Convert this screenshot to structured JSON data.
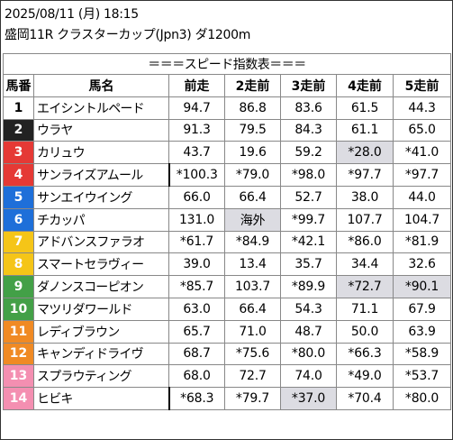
{
  "header": {
    "date_time": "2025/08/11 (月) 18:15",
    "race": "盛岡11R クラスターカップ(Jpn3) ダ1200m"
  },
  "table": {
    "title": "＝＝＝スピード指数表＝＝＝",
    "columns": [
      "馬番",
      "馬名",
      "前走",
      "2走前",
      "3走前",
      "4走前",
      "5走前"
    ],
    "rows": [
      {
        "num": "1",
        "name": "エイシントルペード",
        "bg": "#ffffff",
        "fg": "#000000",
        "vals": [
          "94.7",
          "86.8",
          "83.6",
          "61.5",
          "44.3"
        ]
      },
      {
        "num": "2",
        "name": "ウラヤ",
        "bg": "#222222",
        "fg": "#ffffff",
        "vals": [
          "91.3",
          "79.5",
          "84.3",
          "61.1",
          "65.0"
        ]
      },
      {
        "num": "3",
        "name": "カリュウ",
        "bg": "#e53935",
        "fg": "#ffffff",
        "vals": [
          "43.7",
          "19.6",
          "59.2",
          "*28.0",
          "*41.0"
        ]
      },
      {
        "num": "4",
        "name": "サンライズアムール",
        "bg": "#e53935",
        "fg": "#ffffff",
        "vals": [
          "*100.3",
          "*79.0",
          "*98.0",
          "*97.7",
          "*97.7"
        ]
      },
      {
        "num": "5",
        "name": "サンエイウイング",
        "bg": "#1e6fd9",
        "fg": "#ffffff",
        "vals": [
          "66.0",
          "66.4",
          "52.7",
          "38.0",
          "44.0"
        ]
      },
      {
        "num": "6",
        "name": "チカッパ",
        "bg": "#1e6fd9",
        "fg": "#ffffff",
        "vals": [
          "131.0",
          "海外",
          "*99.7",
          "107.7",
          "104.7"
        ]
      },
      {
        "num": "7",
        "name": "アドバンスファラオ",
        "bg": "#f5c518",
        "fg": "#ffffff",
        "vals": [
          "*61.7",
          "*84.9",
          "*42.1",
          "*86.0",
          "*81.9"
        ]
      },
      {
        "num": "8",
        "name": "スマートセラヴィー",
        "bg": "#f5c518",
        "fg": "#ffffff",
        "vals": [
          "39.0",
          "13.4",
          "35.7",
          "34.4",
          "32.6"
        ]
      },
      {
        "num": "9",
        "name": "ダノンスコーピオン",
        "bg": "#43a047",
        "fg": "#ffffff",
        "vals": [
          "*85.7",
          "103.7",
          "*89.9",
          "*72.7",
          "*90.1"
        ]
      },
      {
        "num": "10",
        "name": "マツリダワールド",
        "bg": "#43a047",
        "fg": "#ffffff",
        "vals": [
          "63.0",
          "66.4",
          "54.3",
          "71.1",
          "67.9"
        ]
      },
      {
        "num": "11",
        "name": "レディブラウン",
        "bg": "#f08a24",
        "fg": "#ffffff",
        "vals": [
          "65.7",
          "71.0",
          "48.7",
          "50.0",
          "63.9"
        ]
      },
      {
        "num": "12",
        "name": "キャンディドライヴ",
        "bg": "#f08a24",
        "fg": "#ffffff",
        "vals": [
          "68.7",
          "*75.6",
          "*80.0",
          "*66.3",
          "*58.9"
        ]
      },
      {
        "num": "13",
        "name": "スプラウティング",
        "bg": "#f48fb1",
        "fg": "#ffffff",
        "vals": [
          "68.0",
          "72.7",
          "74.0",
          "*49.0",
          "*53.7"
        ]
      },
      {
        "num": "14",
        "name": "ヒビキ",
        "bg": "#f48fb1",
        "fg": "#ffffff",
        "vals": [
          "*68.3",
          "*79.7",
          "*37.0",
          "*70.4",
          "*80.0"
        ]
      }
    ],
    "highlight_color": "#dcdce2",
    "highlighted_cells": [
      [
        2,
        3
      ],
      [
        5,
        1
      ],
      [
        8,
        3
      ],
      [
        8,
        4
      ],
      [
        13,
        2
      ]
    ],
    "thick_left_border_rows": [
      3,
      13
    ]
  }
}
